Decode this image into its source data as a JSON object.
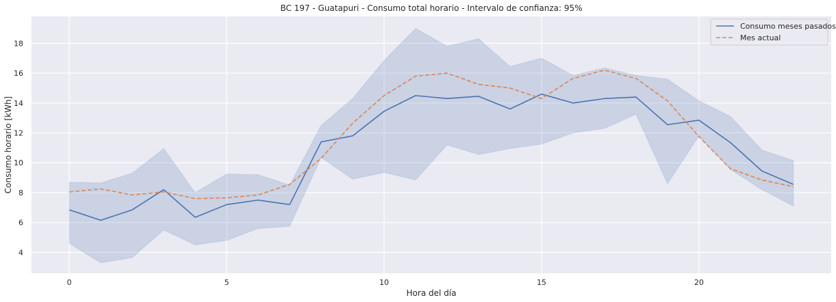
{
  "chart_data": {
    "type": "line",
    "title": "BC 197 - Guatapuri - Consumo total horario - Intervalo de confianza: 95%",
    "xlabel": "Hora del día",
    "ylabel": "Consumo horario [kWh]",
    "xlim": [
      -1.2,
      24.2
    ],
    "ylim": [
      2.6,
      19.8
    ],
    "xticks": [
      0,
      5,
      10,
      15,
      20
    ],
    "yticks": [
      4,
      6,
      8,
      10,
      12,
      14,
      16,
      18
    ],
    "grid": true,
    "legend_position": "top-right",
    "background_color": "#eaeaf2",
    "x": [
      0,
      1,
      2,
      3,
      4,
      5,
      6,
      7,
      8,
      9,
      10,
      11,
      12,
      13,
      14,
      15,
      16,
      17,
      18,
      19,
      20,
      21,
      22,
      23
    ],
    "series": [
      {
        "name": "Consumo meses pasados",
        "style": "solid",
        "color": "#4c72b0",
        "values": [
          6.85,
          6.15,
          6.85,
          8.2,
          6.35,
          7.2,
          7.5,
          7.2,
          11.4,
          11.8,
          13.45,
          14.5,
          14.3,
          14.45,
          13.6,
          14.6,
          14.0,
          14.3,
          14.4,
          12.55,
          12.85,
          11.35,
          9.45,
          8.55
        ],
        "ci_lower": [
          4.6,
          3.3,
          3.65,
          5.5,
          4.5,
          4.8,
          5.6,
          5.75,
          10.35,
          8.9,
          9.35,
          8.85,
          11.2,
          10.55,
          10.95,
          11.25,
          12.0,
          12.3,
          13.25,
          8.6,
          11.8,
          9.55,
          8.2,
          7.1
        ],
        "ci_upper": [
          8.7,
          8.65,
          9.3,
          10.95,
          8.0,
          9.25,
          9.2,
          8.5,
          12.5,
          14.3,
          16.85,
          19.0,
          17.8,
          18.3,
          16.45,
          17.0,
          15.85,
          16.35,
          15.85,
          15.6,
          14.15,
          13.1,
          10.85,
          10.15
        ]
      },
      {
        "name": "Mes actual",
        "style": "dashed",
        "color": "#dd8452",
        "values": [
          8.05,
          8.25,
          7.85,
          8.05,
          7.6,
          7.65,
          7.85,
          8.55,
          10.3,
          12.65,
          14.5,
          15.8,
          16.0,
          15.25,
          15.0,
          14.3,
          15.65,
          16.2,
          15.65,
          14.15,
          11.75,
          9.6,
          8.85,
          8.4
        ]
      }
    ]
  }
}
